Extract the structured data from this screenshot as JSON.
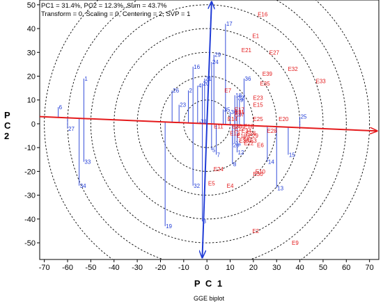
{
  "chart_data": {
    "type": "scatter",
    "title": "",
    "header_lines": [
      "PC1 = 31.4%, PC2 = 12.3%, Sum = 43.7%",
      "Transform = 0, Scaling = 0, Centering = 2, SVP = 1"
    ],
    "xlabel": "P C 1",
    "ylabel": "P C 2",
    "caption": "GGE biplot",
    "xlim": [
      -72,
      74
    ],
    "ylim": [
      -57,
      52
    ],
    "xticks": [
      -70,
      -60,
      -50,
      -40,
      -30,
      -20,
      -10,
      0,
      10,
      20,
      30,
      40,
      50,
      60,
      70
    ],
    "yticks": [
      -50,
      -40,
      -30,
      -20,
      -10,
      0,
      10,
      20,
      30,
      40,
      50
    ],
    "grid": false,
    "circles": {
      "center": [
        0,
        0
      ],
      "radii": [
        10,
        20,
        30,
        40,
        50,
        60,
        70
      ]
    },
    "aec_abscissa": {
      "from": [
        -72,
        3
      ],
      "to": [
        73,
        -3
      ]
    },
    "aec_ordinate": {
      "from": [
        2,
        51
      ],
      "to": [
        -2,
        -56
      ]
    },
    "environments": [
      {
        "label": "E1",
        "x": 21,
        "y": 37
      },
      {
        "label": "E2",
        "x": 21,
        "y": -45
      },
      {
        "label": "E3",
        "x": 20,
        "y": -7
      },
      {
        "label": "E4",
        "x": 10,
        "y": -26
      },
      {
        "label": "E5",
        "x": 2,
        "y": -25
      },
      {
        "label": "E6",
        "x": 23,
        "y": -9
      },
      {
        "label": "E7",
        "x": 9,
        "y": 14
      },
      {
        "label": "E8",
        "x": 17,
        "y": -6
      },
      {
        "label": "E9",
        "x": 38,
        "y": -50
      },
      {
        "label": "E10",
        "x": 23,
        "y": -20
      },
      {
        "label": "E11",
        "x": 5,
        "y": -1
      },
      {
        "label": "E12",
        "x": 14,
        "y": -2
      },
      {
        "label": "E13",
        "x": 12,
        "y": -4
      },
      {
        "label": "E14",
        "x": 11,
        "y": 2
      },
      {
        "label": "E15",
        "x": 22,
        "y": 8
      },
      {
        "label": "E16",
        "x": 24,
        "y": 46
      },
      {
        "label": "E17",
        "x": 14,
        "y": 6
      },
      {
        "label": "E18",
        "x": 18,
        "y": -1
      },
      {
        "label": "E19",
        "x": 15,
        "y": -5
      },
      {
        "label": "E20",
        "x": 33,
        "y": 2
      },
      {
        "label": "E21",
        "x": 17,
        "y": 31
      },
      {
        "label": "E22",
        "x": 18,
        "y": -8
      },
      {
        "label": "E23",
        "x": 22,
        "y": 11
      },
      {
        "label": "E24",
        "x": 5,
        "y": -19
      },
      {
        "label": "E25",
        "x": 22,
        "y": 2
      },
      {
        "label": "E26",
        "x": 19,
        "y": -4
      },
      {
        "label": "E27",
        "x": 29,
        "y": 30
      },
      {
        "label": "E28",
        "x": 28,
        "y": -3
      },
      {
        "label": "E29",
        "x": 20,
        "y": -5
      },
      {
        "label": "E30",
        "x": 22,
        "y": -21
      },
      {
        "label": "E31",
        "x": 14,
        "y": 5
      },
      {
        "label": "E32",
        "x": 37,
        "y": 23
      },
      {
        "label": "E33",
        "x": 49,
        "y": 18
      },
      {
        "label": "E34",
        "x": 17,
        "y": -3
      },
      {
        "label": "E35",
        "x": 25,
        "y": 17
      },
      {
        "label": "E36",
        "x": 13,
        "y": -1
      },
      {
        "label": "E37",
        "x": 14,
        "y": 4
      },
      {
        "label": "E38",
        "x": 16,
        "y": -7
      },
      {
        "label": "E39",
        "x": 26,
        "y": 21
      }
    ],
    "genotypes": [
      {
        "label": "1",
        "x": -53,
        "y": 19
      },
      {
        "label": "2",
        "x": -8,
        "y": 14
      },
      {
        "label": "3",
        "x": -2,
        "y": -41
      },
      {
        "label": "4",
        "x": -4,
        "y": 16
      },
      {
        "label": "5",
        "x": 2,
        "y": -11
      },
      {
        "label": "6",
        "x": -64,
        "y": 7
      },
      {
        "label": "7",
        "x": 4,
        "y": -13
      },
      {
        "label": "8",
        "x": 11,
        "y": -17
      },
      {
        "label": "9",
        "x": 14,
        "y": 10
      },
      {
        "label": "10",
        "x": 12,
        "y": 4
      },
      {
        "label": "11",
        "x": 12,
        "y": -8
      },
      {
        "label": "12",
        "x": 13,
        "y": -12
      },
      {
        "label": "13",
        "x": 30,
        "y": -27
      },
      {
        "label": "14",
        "x": 26,
        "y": -16
      },
      {
        "label": "15",
        "x": 35,
        "y": -13
      },
      {
        "label": "16",
        "x": -6,
        "y": 24
      },
      {
        "label": "17",
        "x": 8,
        "y": 42
      },
      {
        "label": "18",
        "x": 12,
        "y": 12
      },
      {
        "label": "19",
        "x": -18,
        "y": -43
      },
      {
        "label": "20",
        "x": -2,
        "y": 17
      },
      {
        "label": "21",
        "x": -1,
        "y": 19
      },
      {
        "label": "22",
        "x": 13,
        "y": 11
      },
      {
        "label": "23",
        "x": -12,
        "y": 8
      },
      {
        "label": "24",
        "x": 2,
        "y": 26
      },
      {
        "label": "25",
        "x": 40,
        "y": 3
      },
      {
        "label": "26",
        "x": -15,
        "y": 14
      },
      {
        "label": "27",
        "x": -60,
        "y": -2
      },
      {
        "label": "28",
        "x": 11,
        "y": -9
      },
      {
        "label": "29",
        "x": 3,
        "y": 29
      },
      {
        "label": "30",
        "x": 10,
        "y": 5
      },
      {
        "label": "31",
        "x": -3,
        "y": 1
      },
      {
        "label": "32",
        "x": -6,
        "y": -26
      },
      {
        "label": "33",
        "x": -53,
        "y": -16
      },
      {
        "label": "34",
        "x": -55,
        "y": -26
      },
      {
        "label": "35",
        "x": 7,
        "y": 6
      },
      {
        "label": "36",
        "x": 16,
        "y": 19
      }
    ]
  }
}
